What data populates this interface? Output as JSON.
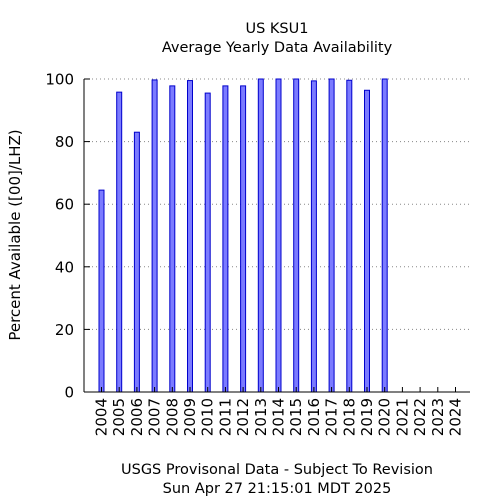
{
  "chart_data": {
    "type": "bar",
    "title": "US KSU1",
    "subtitle": "Average Yearly Data Availability",
    "ylabel": "Percent Available ([00]/LHZ)",
    "footer_line1": "USGS Provisonal Data - Subject To Revision",
    "footer_line2": "Sun Apr 27 21:15:01 MDT 2025",
    "ylim": [
      0,
      100
    ],
    "yticks": [
      0,
      20,
      40,
      60,
      80,
      100
    ],
    "grid": true,
    "categories": [
      "2004",
      "2005",
      "2006",
      "2007",
      "2008",
      "2009",
      "2010",
      "2011",
      "2012",
      "2013",
      "2014",
      "2015",
      "2016",
      "2017",
      "2018",
      "2019",
      "2020",
      "2021",
      "2022",
      "2023",
      "2024"
    ],
    "values": [
      64.5,
      95.8,
      83.0,
      99.7,
      97.8,
      99.5,
      95.5,
      97.8,
      97.8,
      100,
      100,
      100,
      99.4,
      100,
      99.6,
      96.4,
      100,
      0,
      0,
      0,
      0
    ],
    "colors": {
      "bar_fill": "#7b7bff",
      "bar_stroke": "#0000cc",
      "grid": "#888888",
      "axis": "#000000"
    }
  }
}
